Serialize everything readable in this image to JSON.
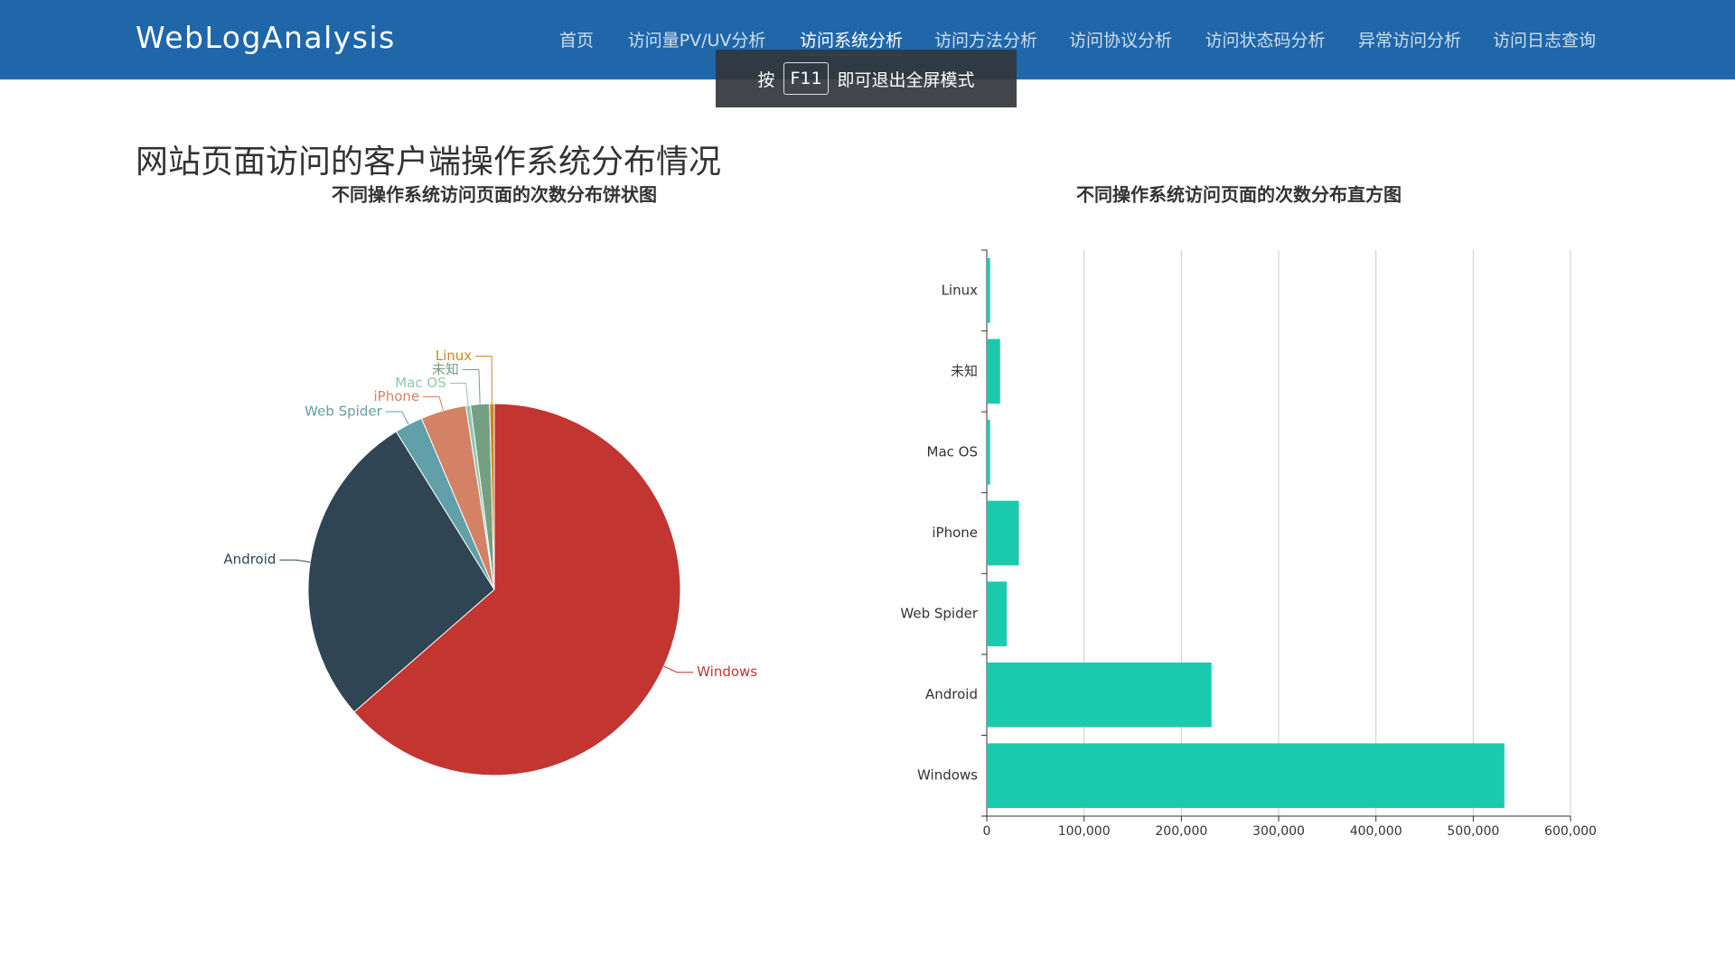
{
  "header": {
    "brand": "WebLogAnalysis",
    "nav": [
      "首页",
      "访问量PV/UV分析",
      "访问系统分析",
      "访问方法分析",
      "访问协议分析",
      "访问状态码分析",
      "异常访问分析",
      "访问日志查询"
    ],
    "active": 2
  },
  "fullscreen_hint": {
    "before": "按",
    "key": "F11",
    "after": "即可退出全屏模式"
  },
  "page_title": "网站页面访问的客户端操作系统分布情况",
  "chart_data": [
    {
      "type": "pie",
      "title": "不同操作系统访问页面的次数分布饼状图",
      "categories": [
        "Windows",
        "Android",
        "Web Spider",
        "iPhone",
        "Mac OS",
        "未知",
        "Linux"
      ],
      "values": [
        532000,
        231000,
        20500,
        33000,
        3400,
        13700,
        3400
      ],
      "colors": [
        "#c23531",
        "#2f4554",
        "#61a0a8",
        "#d48265",
        "#91c7ae",
        "#749f83",
        "#ca8622"
      ]
    },
    {
      "type": "bar",
      "orientation": "horizontal",
      "title": "不同操作系统访问页面的次数分布直方图",
      "categories": [
        "Windows",
        "Android",
        "Web Spider",
        "iPhone",
        "Mac OS",
        "未知",
        "Linux"
      ],
      "values": [
        532000,
        231000,
        20500,
        33000,
        3400,
        13700,
        3400
      ],
      "color": "#1bcaad",
      "xlim": [
        0,
        600000
      ],
      "xticks": [
        0,
        {
          "value": 100000,
          "label": "100,000"
        },
        {
          "value": 200000,
          "label": "200,000"
        },
        {
          "value": 300000,
          "label": "300,000"
        },
        {
          "value": 400000,
          "label": "400,000"
        },
        {
          "value": 500000,
          "label": "500,000"
        },
        {
          "value": 600000,
          "label": "600,000"
        }
      ],
      "grid": true
    }
  ]
}
